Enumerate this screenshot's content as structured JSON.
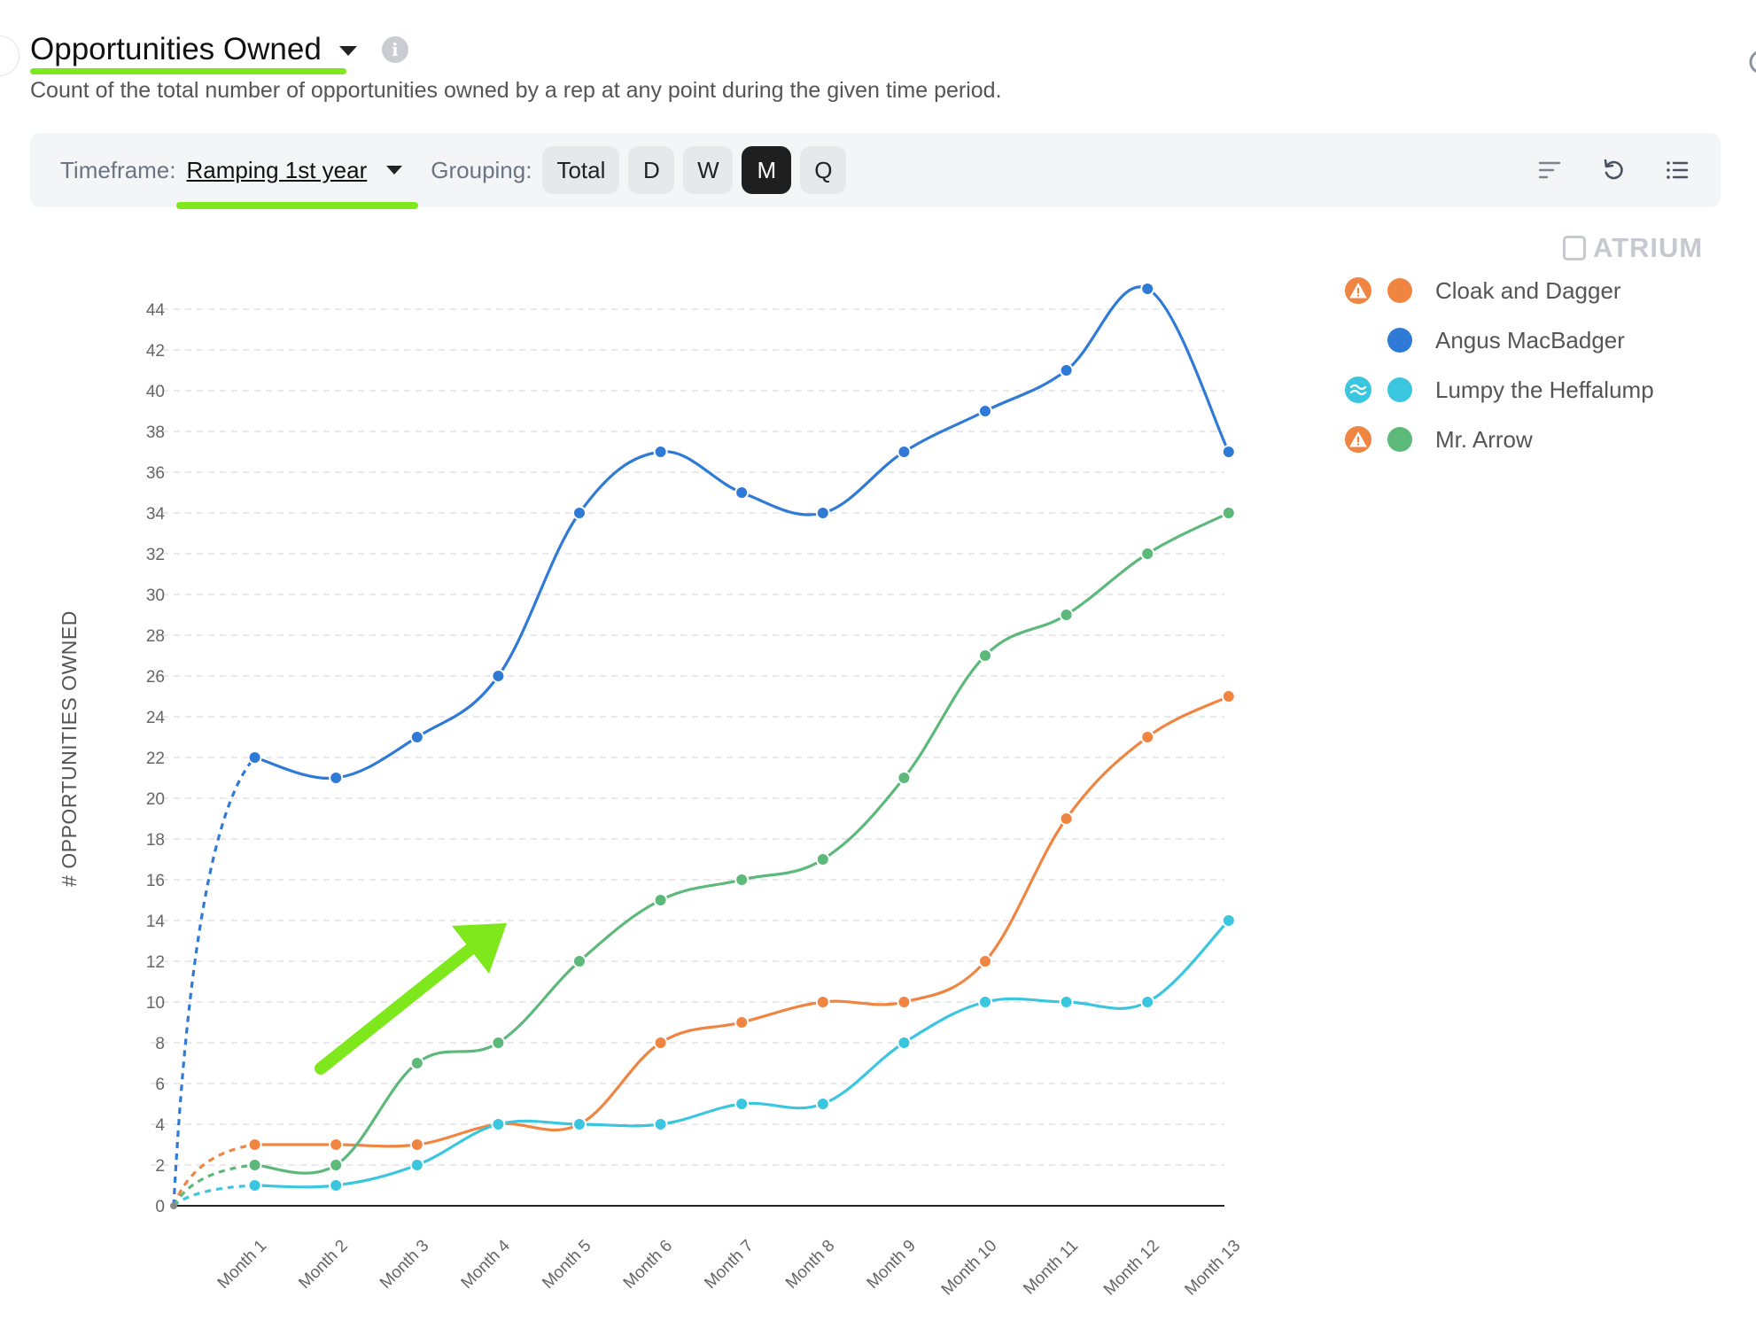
{
  "header": {
    "title": "Opportunities Owned",
    "subtitle": "Count of the total number of opportunities owned by a rep at any point during the given time period."
  },
  "toolbar": {
    "timeframe_label": "Timeframe:",
    "timeframe_value": "Ramping 1st year",
    "grouping_label": "Grouping:",
    "grouping_options": [
      "Total",
      "D",
      "W",
      "M",
      "Q"
    ],
    "grouping_selected": "M",
    "icons": [
      "sort-icon",
      "undo-icon",
      "list-icon"
    ]
  },
  "brand": {
    "name": "ATRIUM"
  },
  "colors": {
    "accent_highlight": "#7ee81d",
    "cloak": "#f08542",
    "angus": "#2f7ad6",
    "lumpy": "#3bc6e0",
    "arrow": "#5cb97a",
    "badge_warning": "#f08542",
    "badge_wave": "#3bc6e0"
  },
  "chart_data": {
    "type": "line",
    "title": "",
    "xlabel": "",
    "ylabel": "# OPPORTUNITIES OWNED",
    "ylim": [
      0,
      45
    ],
    "y_ticks": [
      0,
      2,
      4,
      6,
      8,
      10,
      12,
      14,
      16,
      18,
      20,
      22,
      24,
      26,
      28,
      30,
      32,
      34,
      36,
      38,
      40,
      42,
      44
    ],
    "categories": [
      "Month 1",
      "Month 2",
      "Month 3",
      "Month 4",
      "Month 5",
      "Month 6",
      "Month 7",
      "Month 8",
      "Month 9",
      "Month 10",
      "Month 11",
      "Month 12",
      "Month 13"
    ],
    "origin_value": 0,
    "origin_line_style": "dashed",
    "grid": "horizontal dashed",
    "legend_position": "right",
    "series": [
      {
        "name": "Cloak and Dagger",
        "color": "#f08542",
        "badge": "warning-icon",
        "values": [
          3,
          3,
          3,
          4,
          4,
          8,
          9,
          10,
          10,
          12,
          19,
          23,
          25
        ]
      },
      {
        "name": "Angus MacBadger",
        "color": "#2f7ad6",
        "badge": "",
        "values": [
          22,
          21,
          23,
          26,
          34,
          37,
          35,
          34,
          37,
          39,
          41,
          45,
          37
        ]
      },
      {
        "name": "Lumpy the Heffalump",
        "color": "#3bc6e0",
        "badge": "wave-icon",
        "values": [
          1,
          1,
          2,
          4,
          4,
          4,
          5,
          5,
          8,
          10,
          10,
          10,
          14
        ]
      },
      {
        "name": "Mr. Arrow",
        "color": "#5cb97a",
        "badge": "warning-icon",
        "values": [
          2,
          2,
          7,
          8,
          12,
          15,
          16,
          17,
          21,
          27,
          29,
          32,
          34
        ]
      }
    ]
  }
}
